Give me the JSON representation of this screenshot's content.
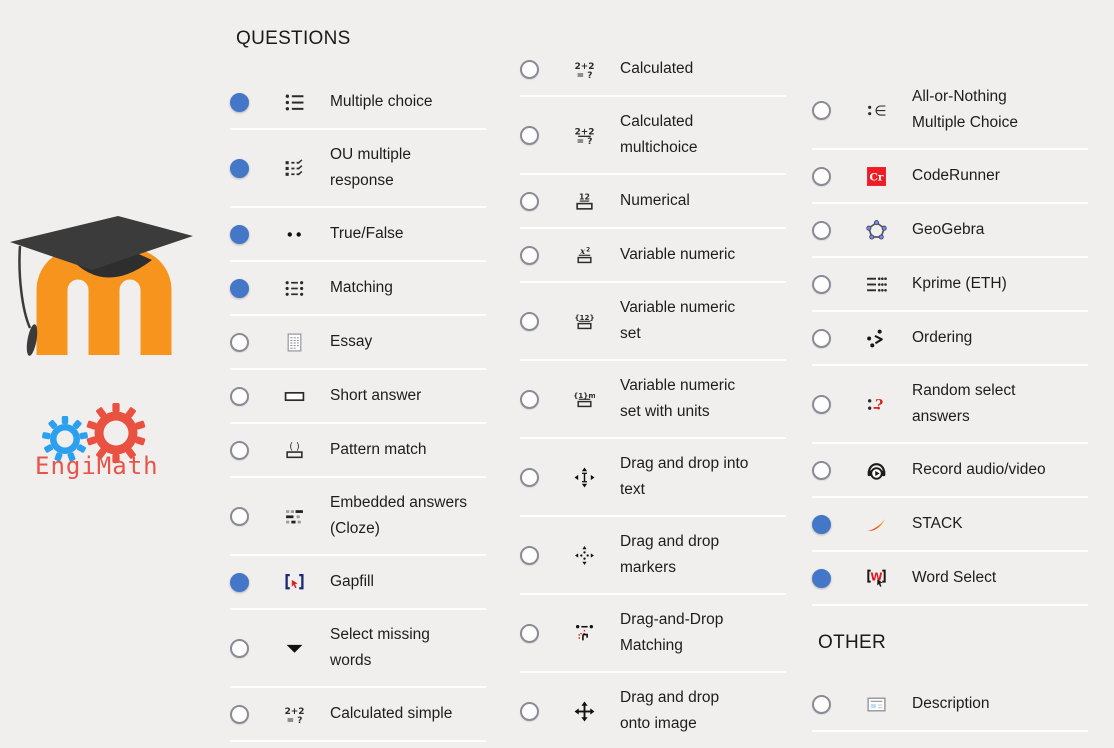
{
  "sections": {
    "questions": "QUESTIONS",
    "other": "OTHER"
  },
  "branding": {
    "engimath_label": "EngiMath",
    "moodle_logo": "moodle-m-with-graduation-cap",
    "engimath_logo": "blue-and-red-gears"
  },
  "colors": {
    "background": "#f0efee",
    "selected_radio_blue": "#4577c8",
    "radio_ring_gray": "#8b8b95",
    "divider": "#fcfcfb",
    "text": "#1d1d1d",
    "moodle_orange": "#f7941d",
    "engimath_coral": "#e8544a",
    "coderunner_red": "#ee1c25",
    "accent_red": "#d6291e",
    "gapfill_navy": "#1b2a72"
  },
  "col1_items": [
    {
      "label": "Multiple choice",
      "icon": "multiple-choice-icon",
      "selected": true
    },
    {
      "label": "OU multiple\nresponse",
      "icon": "ou-multiple-response-icon",
      "selected": true
    },
    {
      "label": "True/False",
      "icon": "true-false-icon",
      "selected": true
    },
    {
      "label": "Matching",
      "icon": "matching-icon",
      "selected": true
    },
    {
      "label": "Essay",
      "icon": "essay-icon",
      "selected": false
    },
    {
      "label": "Short answer",
      "icon": "short-answer-icon",
      "selected": false
    },
    {
      "label": "Pattern match",
      "icon": "pattern-match-icon",
      "selected": false
    },
    {
      "label": "Embedded answers\n(Cloze)",
      "icon": "embedded-answers-cloze-icon",
      "selected": false
    },
    {
      "label": "Gapfill",
      "icon": "gapfill-icon",
      "selected": true
    },
    {
      "label": "Select missing\nwords",
      "icon": "select-missing-words-icon",
      "selected": false
    },
    {
      "label": "Calculated simple",
      "icon": "calculated-simple-icon",
      "selected": false
    }
  ],
  "col2_items": [
    {
      "label": "Calculated",
      "icon": "calculated-icon",
      "selected": false
    },
    {
      "label": "Calculated\nmultichoice",
      "icon": "calculated-multichoice-icon",
      "selected": false
    },
    {
      "label": "Numerical",
      "icon": "numerical-icon",
      "selected": false
    },
    {
      "label": "Variable numeric",
      "icon": "variable-numeric-icon",
      "selected": false
    },
    {
      "label": "Variable numeric\nset",
      "icon": "variable-numeric-set-icon",
      "selected": false
    },
    {
      "label": "Variable numeric\nset with units",
      "icon": "variable-numeric-set-units-icon",
      "selected": false
    },
    {
      "label": "Drag and drop into\ntext",
      "icon": "drag-drop-into-text-icon",
      "selected": false
    },
    {
      "label": "Drag and drop\nmarkers",
      "icon": "drag-drop-markers-icon",
      "selected": false
    },
    {
      "label": "Drag-and-Drop\nMatching",
      "icon": "drag-drop-matching-icon",
      "selected": false
    },
    {
      "label": "Drag and drop\nonto image",
      "icon": "drag-drop-onto-image-icon",
      "selected": false
    }
  ],
  "col3_items": [
    {
      "label": "All-or-Nothing\nMultiple Choice",
      "icon": "all-or-nothing-multiple-choice-icon",
      "selected": false
    },
    {
      "label": "CodeRunner",
      "icon": "coderunner-icon",
      "selected": false
    },
    {
      "label": "GeoGebra",
      "icon": "geogebra-icon",
      "selected": false
    },
    {
      "label": "Kprime (ETH)",
      "icon": "kprime-icon",
      "selected": false
    },
    {
      "label": "Ordering",
      "icon": "ordering-icon",
      "selected": false
    },
    {
      "label": "Random select\nanswers",
      "icon": "random-select-answers-icon",
      "selected": false
    },
    {
      "label": "Record audio/video",
      "icon": "record-audio-video-icon",
      "selected": false
    },
    {
      "label": "STACK",
      "icon": "stack-icon",
      "selected": true
    },
    {
      "label": "Word Select",
      "icon": "word-select-icon",
      "selected": true
    }
  ],
  "col3_other_items": [
    {
      "label": "Description",
      "icon": "description-icon",
      "selected": false
    }
  ]
}
